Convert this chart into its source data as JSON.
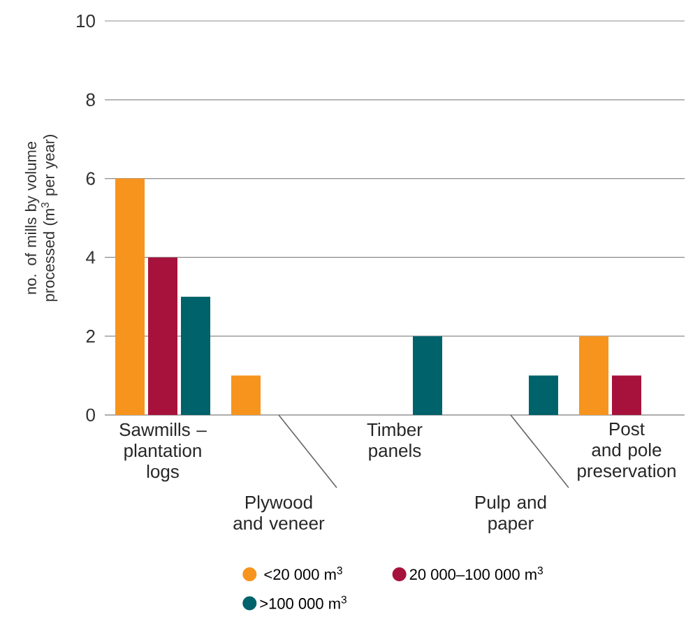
{
  "chart_data": {
    "type": "bar",
    "ylabel": "no. of mills by volume processed (m$^{3}$ per year)",
    "categories": [
      "Sawmills – plantation logs",
      "Plywood and veneer",
      "Timber panels",
      "Pulp and paper",
      "Post and pole preservation"
    ],
    "series": [
      {
        "name": "<20 000 m$^{3}$",
        "color": "#f7941d",
        "values": [
          6,
          1,
          0,
          0,
          2
        ]
      },
      {
        "name": "20 000–100 000 m$^{3}$",
        "color": "#a6123c",
        "values": [
          4,
          0,
          0,
          0,
          1
        ]
      },
      {
        "name": ">100 000 m$^{3}$",
        "color": "#00626a",
        "values": [
          3,
          0,
          2,
          1,
          0
        ]
      }
    ],
    "ylim": [
      0,
      10
    ],
    "yticks": [
      0,
      2,
      4,
      6,
      8,
      10
    ],
    "grid": "y",
    "legend": "bottom"
  }
}
